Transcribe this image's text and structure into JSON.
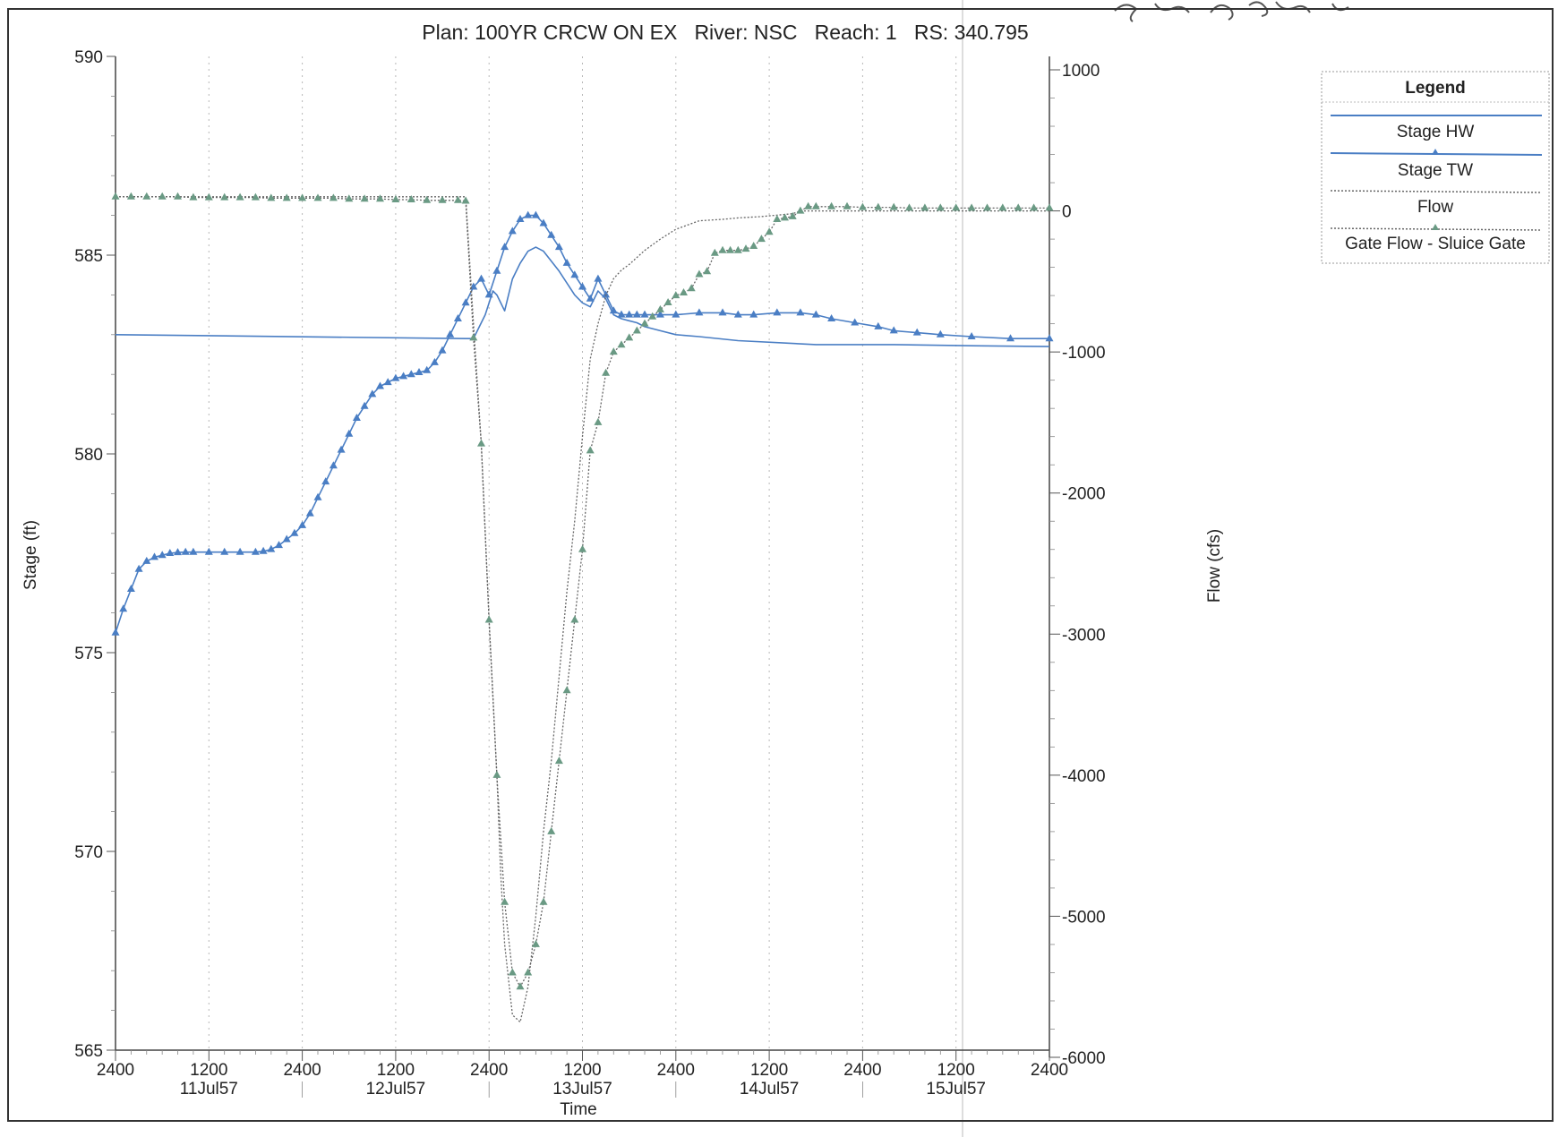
{
  "chart_data": {
    "type": "line",
    "title": "Plan: 100YR CRCW ON EX   River: NSC   Reach: 1   RS: 340.795",
    "xlabel": "Time",
    "ylabel": "Stage (ft)",
    "y2label": "Flow (cfs)",
    "ylim": [
      565,
      590
    ],
    "y2lim": [
      -6000,
      1000
    ],
    "xlim_hours": [
      0,
      120
    ],
    "yticks": [
      "590",
      "585",
      "580",
      "575",
      "570",
      "565"
    ],
    "y2ticks": [
      "1000",
      "0",
      "-1000",
      "-2000",
      "-3000",
      "-4000",
      "-5000",
      "-6000"
    ],
    "xticks": [
      {
        "time": "2400",
        "date": ""
      },
      {
        "time": "1200",
        "date": "11Jul57"
      },
      {
        "time": "2400",
        "date": ""
      },
      {
        "time": "1200",
        "date": "12Jul57"
      },
      {
        "time": "2400",
        "date": ""
      },
      {
        "time": "1200",
        "date": "13Jul57"
      },
      {
        "time": "2400",
        "date": ""
      },
      {
        "time": "1200",
        "date": "14Jul57"
      },
      {
        "time": "2400",
        "date": ""
      },
      {
        "time": "1200",
        "date": "15Jul57"
      },
      {
        "time": "2400",
        "date": ""
      }
    ],
    "grid": true,
    "legend": {
      "title": "Legend",
      "placement": "top-right",
      "entries": [
        "Stage HW",
        "Stage TW",
        "Flow",
        "Gate Flow - Sluice Gate"
      ]
    },
    "colors": {
      "stage": "#4a7ec4",
      "flow": "#6a9a84",
      "flow_dotted": "#666666"
    },
    "series": [
      {
        "name": "Stage HW",
        "axis": "left",
        "style": "solid",
        "x": [
          0,
          45,
          46,
          47,
          47.5,
          48.5,
          49,
          50,
          51,
          52,
          53,
          54,
          55,
          57,
          59,
          60,
          61,
          62,
          63,
          64,
          65,
          66,
          67,
          68,
          70,
          72,
          75,
          80,
          90,
          100,
          110,
          120
        ],
        "y": [
          583.0,
          582.9,
          582.9,
          583.3,
          583.5,
          584.1,
          584.0,
          583.6,
          584.4,
          584.8,
          585.1,
          585.2,
          585.1,
          584.6,
          584.0,
          583.8,
          583.7,
          584.1,
          583.9,
          583.5,
          583.4,
          583.35,
          583.3,
          583.2,
          583.1,
          583.0,
          582.95,
          582.85,
          582.75,
          582.75,
          582.72,
          582.7
        ]
      },
      {
        "name": "Stage TW",
        "axis": "left",
        "style": "triangles",
        "x": [
          0,
          1,
          2,
          3,
          4,
          5,
          6,
          7,
          8,
          9,
          10,
          12,
          14,
          16,
          18,
          19,
          20,
          21,
          22,
          23,
          24,
          25,
          26,
          27,
          28,
          29,
          30,
          31,
          32,
          33,
          34,
          35,
          36,
          37,
          38,
          39,
          40,
          41,
          42,
          43,
          44,
          45,
          46,
          47,
          48,
          49,
          50,
          51,
          52,
          53,
          54,
          55,
          56,
          57,
          58,
          59,
          60,
          61,
          62,
          63,
          64,
          65,
          66,
          67,
          68,
          70,
          72,
          75,
          78,
          80,
          82,
          85,
          88,
          90,
          92,
          95,
          98,
          100,
          103,
          106,
          110,
          115,
          120
        ],
        "y": [
          575.5,
          576.1,
          576.6,
          577.1,
          577.3,
          577.4,
          577.45,
          577.5,
          577.52,
          577.53,
          577.53,
          577.53,
          577.53,
          577.53,
          577.53,
          577.55,
          577.6,
          577.7,
          577.85,
          578.0,
          578.2,
          578.5,
          578.9,
          579.3,
          579.7,
          580.1,
          580.5,
          580.9,
          581.2,
          581.5,
          581.7,
          581.8,
          581.9,
          581.95,
          582.0,
          582.05,
          582.1,
          582.3,
          582.6,
          583.0,
          583.4,
          583.8,
          584.2,
          584.4,
          584.0,
          584.6,
          585.2,
          585.6,
          585.9,
          586.0,
          586.0,
          585.8,
          585.5,
          585.2,
          584.8,
          584.5,
          584.2,
          583.9,
          584.4,
          584.0,
          583.6,
          583.5,
          583.5,
          583.5,
          583.5,
          583.5,
          583.5,
          583.55,
          583.55,
          583.5,
          583.5,
          583.55,
          583.55,
          583.5,
          583.4,
          583.3,
          583.2,
          583.1,
          583.05,
          583.0,
          582.95,
          582.9,
          582.9
        ]
      },
      {
        "name": "Flow",
        "axis": "right",
        "style": "dotted",
        "x": [
          0,
          45,
          46,
          47,
          48,
          49,
          49.5,
          50,
          51,
          52,
          53,
          54,
          55,
          56,
          57,
          58,
          59,
          60,
          61,
          62,
          63,
          64,
          65,
          66,
          67,
          68,
          70,
          72,
          75,
          78,
          80,
          83,
          87,
          88,
          90,
          95,
          100,
          110,
          120
        ],
        "y": [
          100,
          100,
          -800,
          -1650,
          -2900,
          -4000,
          -4700,
          -5200,
          -5700,
          -5750,
          -5500,
          -5000,
          -4400,
          -3900,
          -3300,
          -2700,
          -2200,
          -1600,
          -1050,
          -800,
          -600,
          -480,
          -420,
          -380,
          -330,
          -280,
          -200,
          -130,
          -70,
          -60,
          -50,
          -40,
          -20,
          0,
          0,
          0,
          0,
          0,
          0
        ]
      },
      {
        "name": "Gate Flow - Sluice Gate",
        "axis": "right",
        "style": "triangles",
        "x": [
          0,
          2,
          4,
          6,
          8,
          10,
          12,
          14,
          16,
          18,
          20,
          22,
          24,
          26,
          28,
          30,
          32,
          34,
          36,
          38,
          40,
          42,
          44,
          45,
          46,
          47,
          48,
          49,
          50,
          51,
          52,
          53,
          54,
          55,
          56,
          57,
          58,
          59,
          60,
          61,
          62,
          63,
          64,
          65,
          66,
          67,
          68,
          69,
          70,
          71,
          72,
          73,
          74,
          75,
          76,
          77,
          78,
          79,
          80,
          81,
          82,
          83,
          84,
          85,
          86,
          87,
          88,
          89,
          90,
          92,
          94,
          96,
          98,
          100,
          102,
          104,
          106,
          108,
          110,
          112,
          114,
          116,
          118,
          120
        ],
        "y": [
          100,
          100,
          100,
          100,
          100,
          95,
          95,
          95,
          95,
          95,
          90,
          90,
          90,
          90,
          90,
          85,
          85,
          85,
          80,
          80,
          75,
          75,
          75,
          70,
          -900,
          -1650,
          -2900,
          -4000,
          -4900,
          -5400,
          -5500,
          -5400,
          -5200,
          -4900,
          -4400,
          -3900,
          -3400,
          -2900,
          -2400,
          -1700,
          -1500,
          -1150,
          -1000,
          -950,
          -900,
          -850,
          -800,
          -750,
          -700,
          -650,
          -600,
          -580,
          -550,
          -450,
          -430,
          -300,
          -280,
          -280,
          -280,
          -270,
          -250,
          -200,
          -150,
          -60,
          -50,
          -40,
          0,
          30,
          30,
          30,
          30,
          25,
          25,
          25,
          20,
          20,
          20,
          20,
          20,
          20,
          20,
          20,
          20,
          20
        ]
      }
    ]
  },
  "marks": {
    "corner_scribble": "scribble"
  }
}
